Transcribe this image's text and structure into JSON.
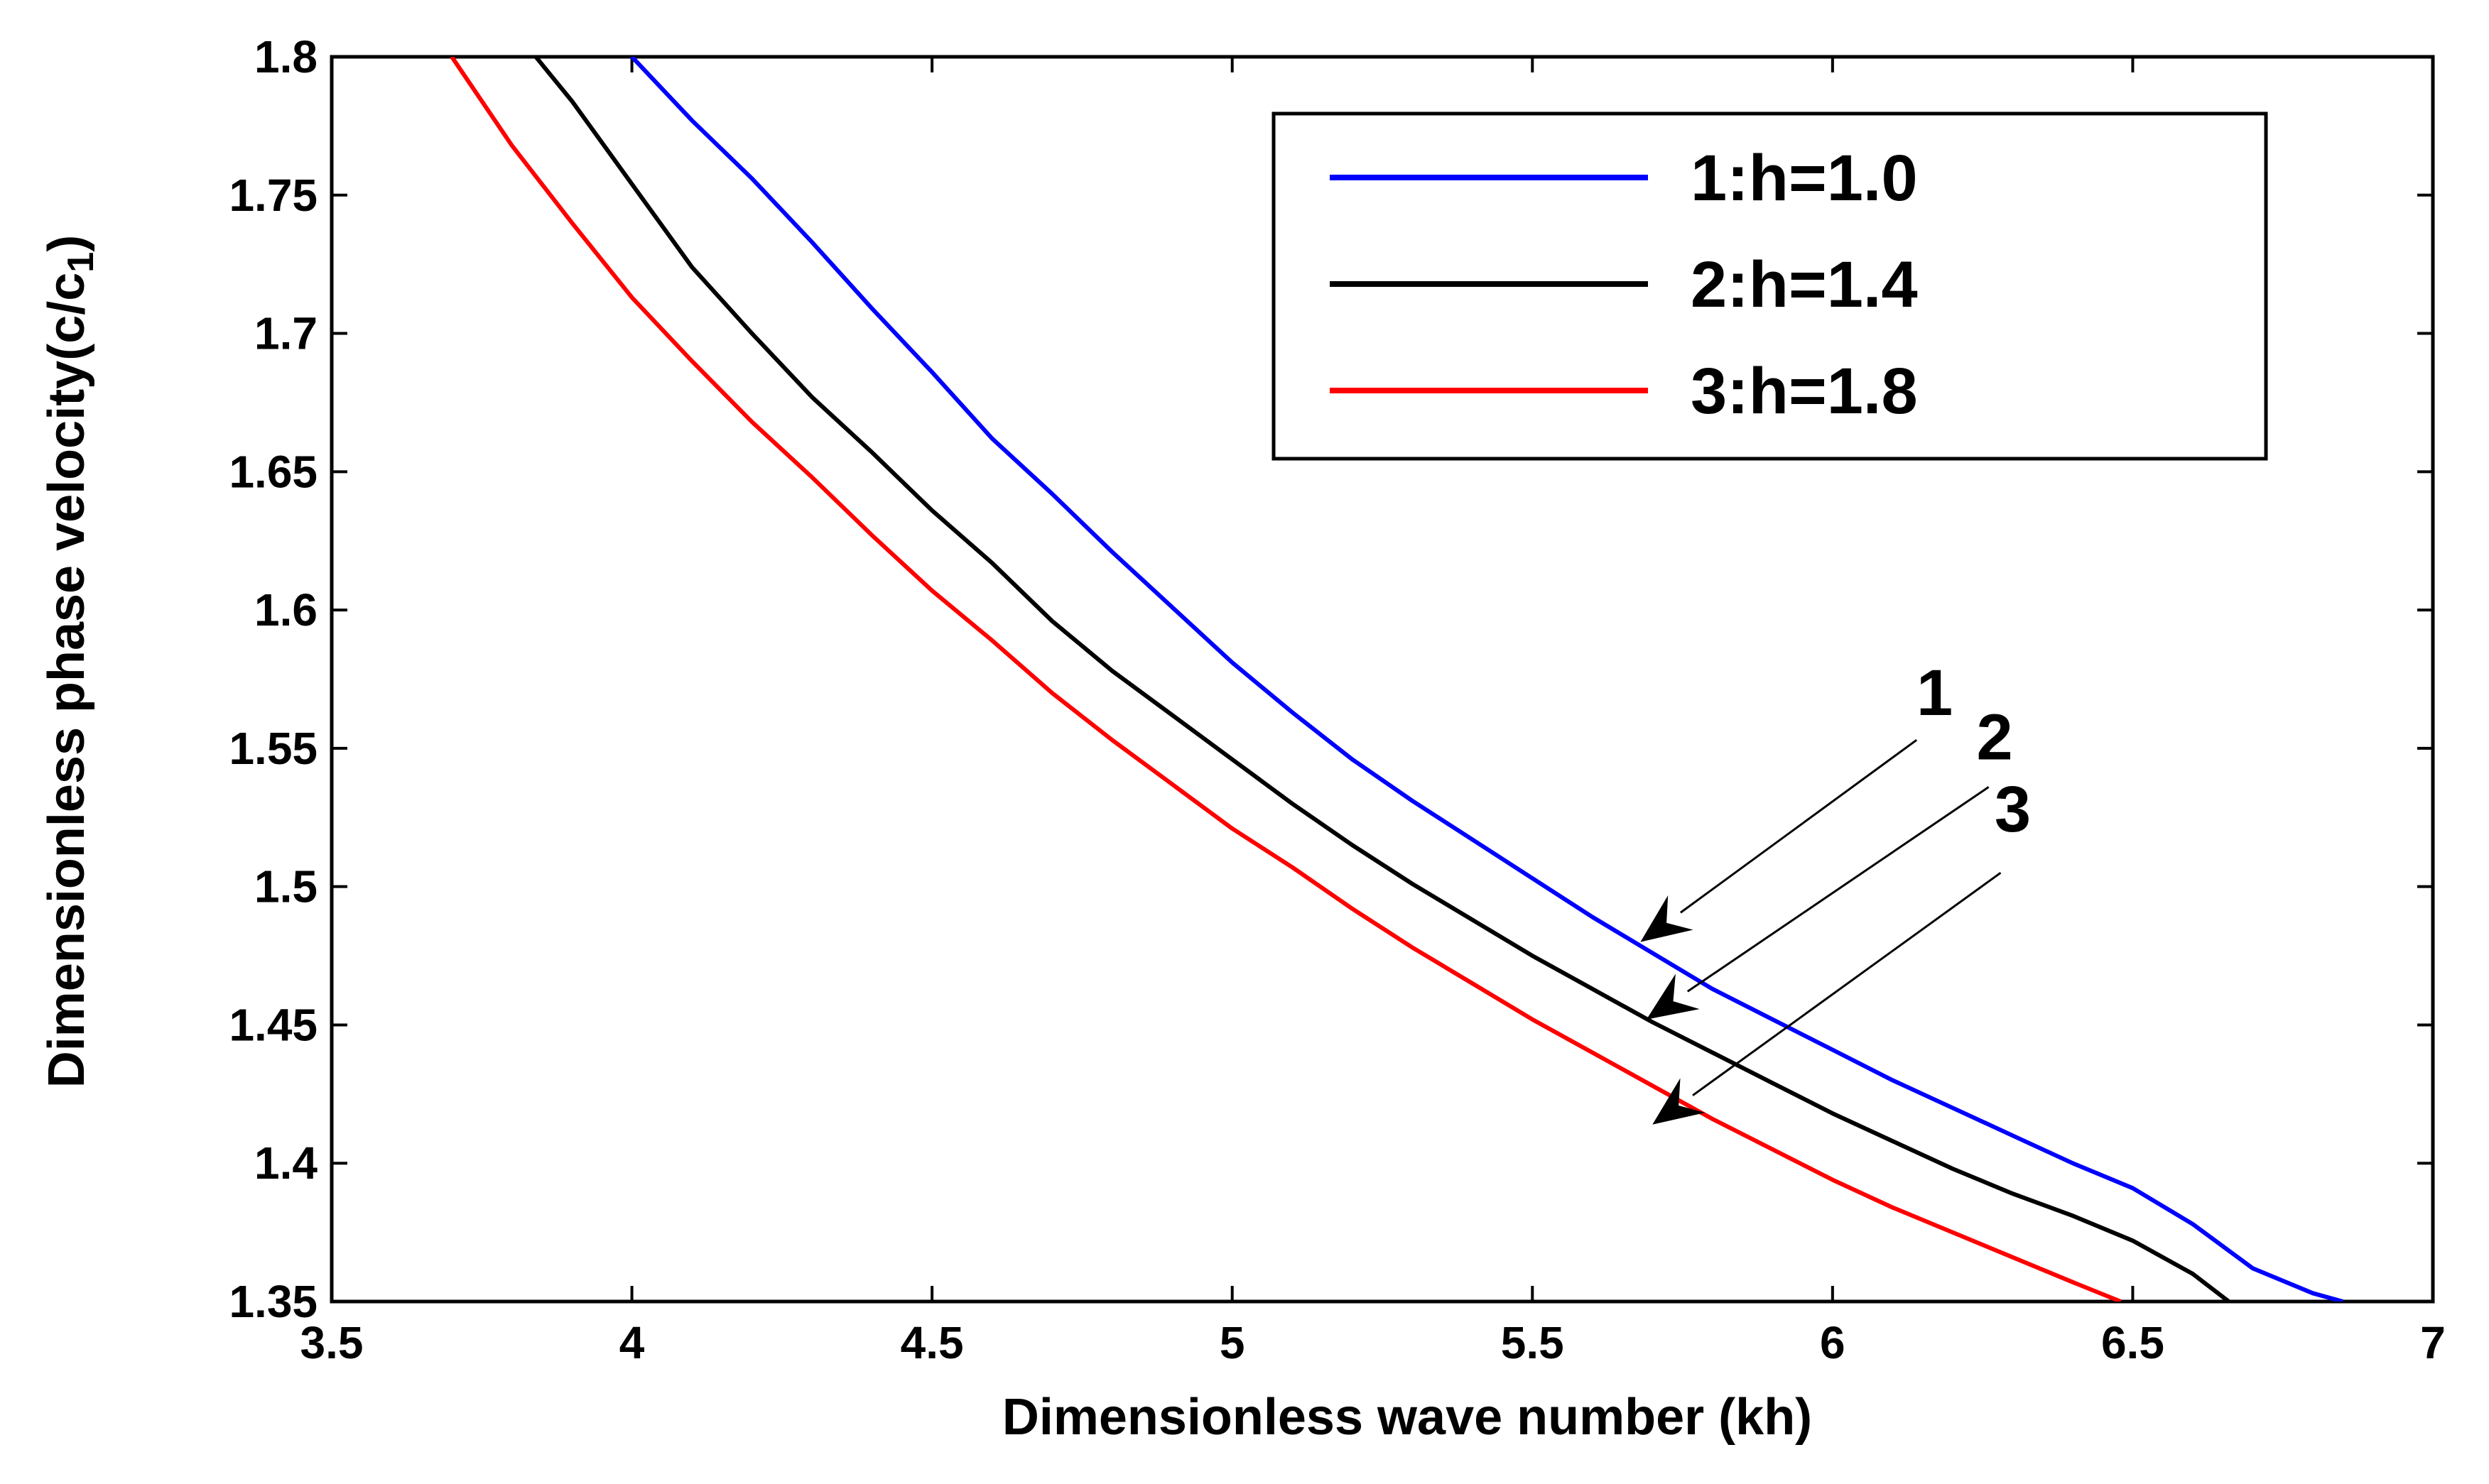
{
  "chart_data": {
    "type": "line",
    "title": "",
    "xlabel": "Dimensionless wave number (kh)",
    "ylabel": "Dimensionless phase velocity(c/c",
    "ylabel_subscript": "1",
    "ylabel_close": ")",
    "xlim": [
      3.5,
      7
    ],
    "ylim": [
      1.35,
      1.8
    ],
    "x_ticks": [
      3.5,
      4,
      4.5,
      5,
      5.5,
      6,
      6.5,
      7
    ],
    "x_tick_labels": [
      "3.5",
      "4",
      "4.5",
      "5",
      "5.5",
      "6",
      "6.5",
      "7"
    ],
    "y_ticks": [
      1.35,
      1.4,
      1.45,
      1.5,
      1.55,
      1.6,
      1.65,
      1.7,
      1.75,
      1.8
    ],
    "y_tick_labels": [
      "1.35",
      "1.4",
      "1.45",
      "1.5",
      "1.55",
      "1.6",
      "1.65",
      "1.7",
      "1.75",
      "1.8"
    ],
    "grid": false,
    "legend_position": "top-right",
    "series": [
      {
        "name": "1:h=1.0",
        "color": "#0000ff",
        "points": [
          [
            4.0,
            1.8
          ],
          [
            4.1,
            1.777
          ],
          [
            4.2,
            1.756
          ],
          [
            4.3,
            1.733
          ],
          [
            4.4,
            1.709
          ],
          [
            4.5,
            1.686
          ],
          [
            4.6,
            1.662
          ],
          [
            4.7,
            1.642
          ],
          [
            4.8,
            1.621
          ],
          [
            4.9,
            1.601
          ],
          [
            5.0,
            1.581
          ],
          [
            5.1,
            1.563
          ],
          [
            5.2,
            1.546
          ],
          [
            5.3,
            1.531
          ],
          [
            5.4,
            1.517
          ],
          [
            5.5,
            1.503
          ],
          [
            5.6,
            1.489
          ],
          [
            5.7,
            1.476
          ],
          [
            5.8,
            1.463
          ],
          [
            5.9,
            1.452
          ],
          [
            6.0,
            1.441
          ],
          [
            6.1,
            1.43
          ],
          [
            6.2,
            1.42
          ],
          [
            6.3,
            1.41
          ],
          [
            6.4,
            1.4
          ],
          [
            6.5,
            1.391
          ],
          [
            6.6,
            1.378
          ],
          [
            6.7,
            1.362
          ],
          [
            6.8,
            1.353
          ],
          [
            6.85,
            1.35
          ]
        ]
      },
      {
        "name": "2:h=1.4",
        "color": "#000000",
        "points": [
          [
            3.84,
            1.8
          ],
          [
            3.9,
            1.784
          ],
          [
            4.0,
            1.754
          ],
          [
            4.1,
            1.724
          ],
          [
            4.2,
            1.7
          ],
          [
            4.3,
            1.677
          ],
          [
            4.4,
            1.657
          ],
          [
            4.5,
            1.636
          ],
          [
            4.6,
            1.617
          ],
          [
            4.7,
            1.596
          ],
          [
            4.8,
            1.578
          ],
          [
            4.9,
            1.562
          ],
          [
            5.0,
            1.546
          ],
          [
            5.1,
            1.53
          ],
          [
            5.2,
            1.515
          ],
          [
            5.3,
            1.501
          ],
          [
            5.4,
            1.488
          ],
          [
            5.5,
            1.475
          ],
          [
            5.6,
            1.463
          ],
          [
            5.7,
            1.451
          ],
          [
            5.8,
            1.44
          ],
          [
            5.9,
            1.429
          ],
          [
            6.0,
            1.418
          ],
          [
            6.1,
            1.408
          ],
          [
            6.2,
            1.398
          ],
          [
            6.3,
            1.389
          ],
          [
            6.4,
            1.381
          ],
          [
            6.5,
            1.372
          ],
          [
            6.6,
            1.36
          ],
          [
            6.66,
            1.35
          ]
        ]
      },
      {
        "name": "3:h=1.8",
        "color": "#ff0000",
        "points": [
          [
            3.7,
            1.8
          ],
          [
            3.8,
            1.768
          ],
          [
            3.9,
            1.74
          ],
          [
            4.0,
            1.713
          ],
          [
            4.1,
            1.69
          ],
          [
            4.2,
            1.668
          ],
          [
            4.3,
            1.648
          ],
          [
            4.4,
            1.627
          ],
          [
            4.5,
            1.607
          ],
          [
            4.6,
            1.589
          ],
          [
            4.7,
            1.57
          ],
          [
            4.8,
            1.553
          ],
          [
            4.9,
            1.537
          ],
          [
            5.0,
            1.521
          ],
          [
            5.1,
            1.507
          ],
          [
            5.2,
            1.492
          ],
          [
            5.3,
            1.478
          ],
          [
            5.4,
            1.465
          ],
          [
            5.5,
            1.452
          ],
          [
            5.6,
            1.44
          ],
          [
            5.7,
            1.428
          ],
          [
            5.8,
            1.416
          ],
          [
            5.9,
            1.405
          ],
          [
            6.0,
            1.394
          ],
          [
            6.1,
            1.384
          ],
          [
            6.2,
            1.375
          ],
          [
            6.3,
            1.366
          ],
          [
            6.4,
            1.357
          ],
          [
            6.48,
            1.35
          ]
        ]
      }
    ],
    "annotations": [
      {
        "label": "1",
        "text_at": [
          6.17,
          1.562
        ],
        "line_from": [
          6.14,
          1.553
        ],
        "arrow_to": [
          5.68,
          1.48
        ]
      },
      {
        "label": "2",
        "text_at": [
          6.27,
          1.546
        ],
        "line_from": [
          6.26,
          1.536
        ],
        "arrow_to": [
          5.69,
          1.452
        ]
      },
      {
        "label": "3",
        "text_at": [
          6.3,
          1.52
        ],
        "line_from": [
          6.28,
          1.505
        ],
        "arrow_to": [
          5.7,
          1.414
        ]
      }
    ]
  }
}
